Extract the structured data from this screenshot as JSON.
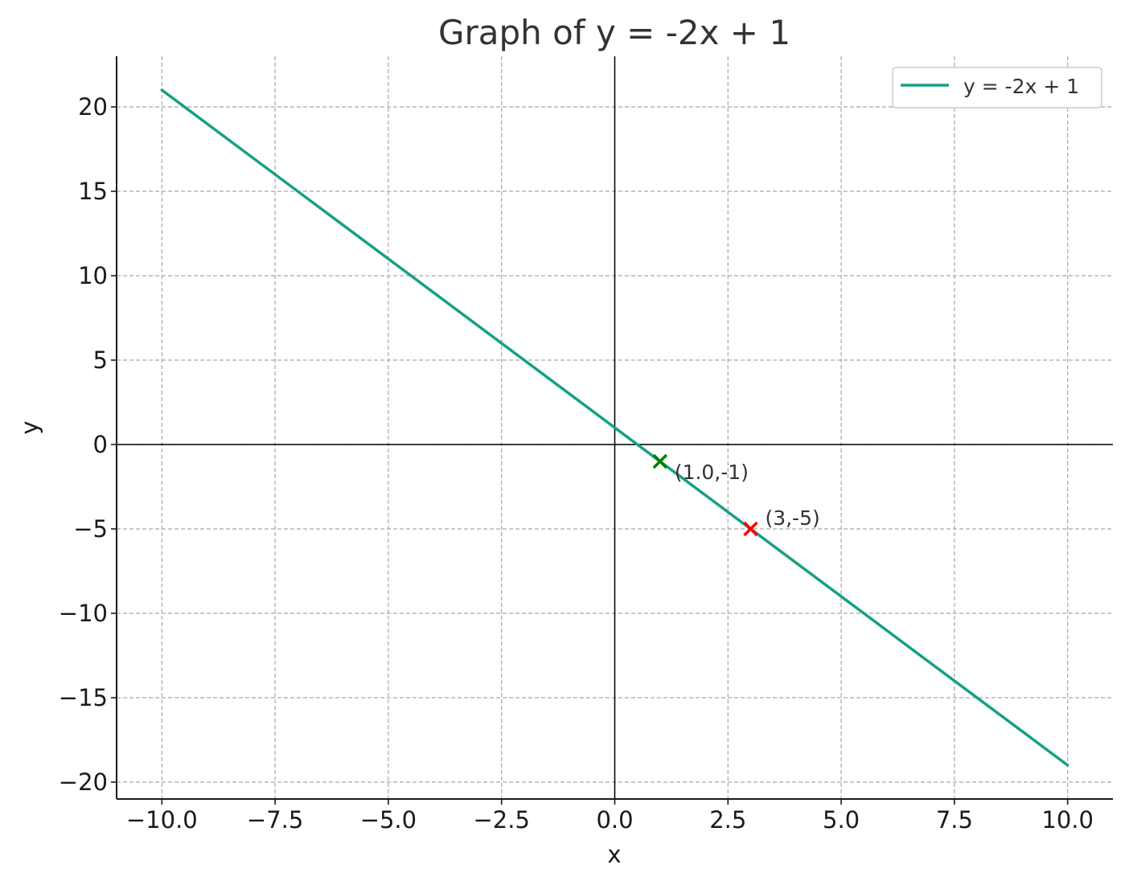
{
  "chart_data": {
    "type": "line",
    "title": "Graph of y = -2x + 1",
    "xlabel": "x",
    "ylabel": "y",
    "xlim": [
      -11,
      11
    ],
    "ylim": [
      -21,
      23
    ],
    "xticks": [
      -10.0,
      -7.5,
      -5.0,
      -2.5,
      0.0,
      2.5,
      5.0,
      7.5,
      10.0
    ],
    "xtick_labels": [
      "−10.0",
      "−7.5",
      "−5.0",
      "−2.5",
      "0.0",
      "2.5",
      "5.0",
      "7.5",
      "10.0"
    ],
    "yticks": [
      -20,
      -15,
      -10,
      -5,
      0,
      5,
      10,
      15,
      20
    ],
    "ytick_labels": [
      "−20",
      "−15",
      "−10",
      "−5",
      "0",
      "5",
      "10",
      "15",
      "20"
    ],
    "grid": true,
    "legend_position": "top-right",
    "series": [
      {
        "name": "y = -2x + 1",
        "color": "#16a085",
        "x": [
          -10,
          10
        ],
        "y": [
          21,
          -19
        ]
      }
    ],
    "points": [
      {
        "x": 1.0,
        "y": -1,
        "label": "(1.0,-1)",
        "marker": "x",
        "color": "#008000"
      },
      {
        "x": 3,
        "y": -5,
        "label": "(3,-5)",
        "marker": "x",
        "color": "#ff0000"
      }
    ]
  }
}
